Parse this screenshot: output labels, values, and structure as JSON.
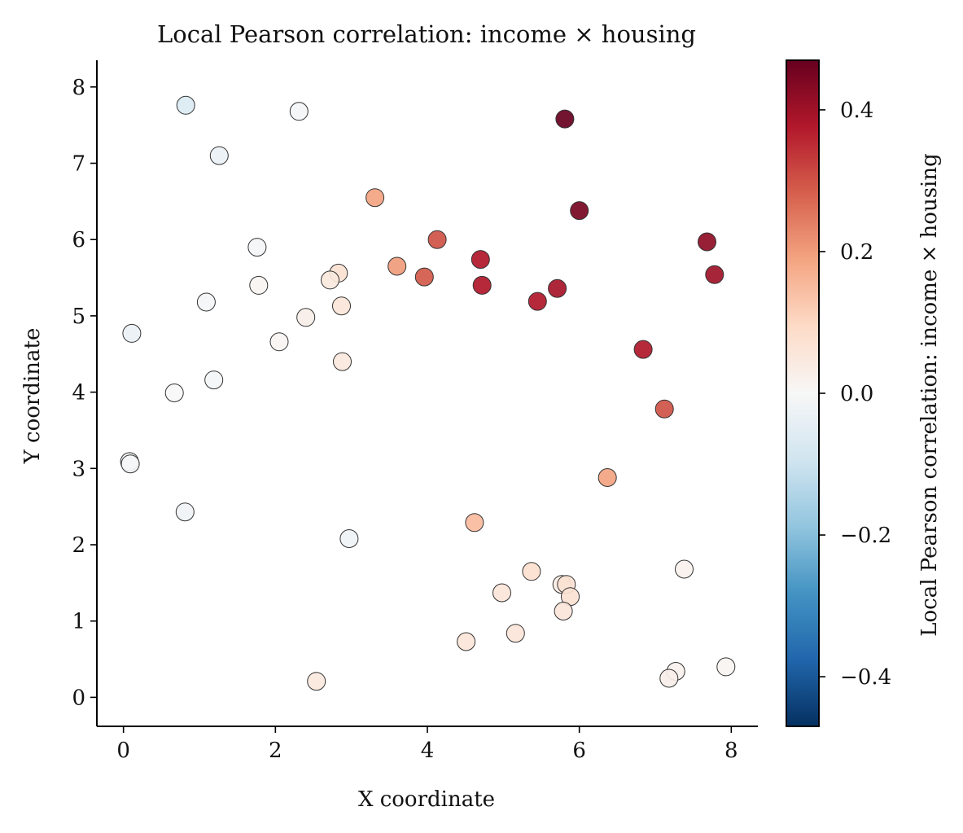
{
  "chart_data": {
    "type": "scatter",
    "title": "Local Pearson correlation: income × housing",
    "xlabel": "X coordinate",
    "ylabel": "Y coordinate",
    "xlim": [
      -0.35,
      8.35
    ],
    "ylim": [
      -0.38,
      8.35
    ],
    "xticks": [
      0,
      2,
      4,
      6,
      8
    ],
    "yticks": [
      0,
      1,
      2,
      3,
      4,
      5,
      6,
      7,
      8
    ],
    "grid": false,
    "colorbar": {
      "label": "Local Pearson correlation: income × housing",
      "range": [
        -0.47,
        0.47
      ],
      "ticks": [
        -0.4,
        -0.2,
        0.0,
        0.2,
        0.4
      ],
      "tick_labels": [
        "−0.4",
        "−0.2",
        "0.0",
        "0.2",
        "0.4"
      ],
      "colormap": "RdBu_r"
    },
    "points": [
      {
        "x": 0.82,
        "y": 7.76,
        "v": -0.07
      },
      {
        "x": 2.31,
        "y": 7.68,
        "v": -0.01
      },
      {
        "x": 1.26,
        "y": 7.1,
        "v": -0.03
      },
      {
        "x": 5.81,
        "y": 7.58,
        "v": 0.47
      },
      {
        "x": 6.0,
        "y": 6.38,
        "v": 0.45
      },
      {
        "x": 3.31,
        "y": 6.55,
        "v": 0.19
      },
      {
        "x": 4.13,
        "y": 6.0,
        "v": 0.3
      },
      {
        "x": 7.68,
        "y": 5.97,
        "v": 0.42
      },
      {
        "x": 7.78,
        "y": 5.54,
        "v": 0.4
      },
      {
        "x": 1.76,
        "y": 5.9,
        "v": -0.01
      },
      {
        "x": 4.7,
        "y": 5.74,
        "v": 0.38
      },
      {
        "x": 3.6,
        "y": 5.65,
        "v": 0.2
      },
      {
        "x": 3.96,
        "y": 5.51,
        "v": 0.29
      },
      {
        "x": 2.83,
        "y": 5.56,
        "v": 0.07
      },
      {
        "x": 2.72,
        "y": 5.47,
        "v": 0.05
      },
      {
        "x": 1.78,
        "y": 5.4,
        "v": 0.01
      },
      {
        "x": 4.72,
        "y": 5.4,
        "v": 0.38
      },
      {
        "x": 5.71,
        "y": 5.36,
        "v": 0.39
      },
      {
        "x": 5.45,
        "y": 5.19,
        "v": 0.38
      },
      {
        "x": 1.09,
        "y": 5.18,
        "v": -0.01
      },
      {
        "x": 2.87,
        "y": 5.13,
        "v": 0.06
      },
      {
        "x": 2.4,
        "y": 4.98,
        "v": 0.03
      },
      {
        "x": 0.11,
        "y": 4.77,
        "v": -0.03
      },
      {
        "x": 2.05,
        "y": 4.66,
        "v": 0.01
      },
      {
        "x": 6.84,
        "y": 4.56,
        "v": 0.38
      },
      {
        "x": 2.88,
        "y": 4.4,
        "v": 0.05
      },
      {
        "x": 1.19,
        "y": 4.16,
        "v": -0.01
      },
      {
        "x": 0.67,
        "y": 3.99,
        "v": 0.0
      },
      {
        "x": 7.12,
        "y": 3.78,
        "v": 0.3
      },
      {
        "x": 0.08,
        "y": 3.09,
        "v": -0.01
      },
      {
        "x": 0.09,
        "y": 3.06,
        "v": -0.01
      },
      {
        "x": 6.37,
        "y": 2.88,
        "v": 0.19
      },
      {
        "x": 0.81,
        "y": 2.43,
        "v": -0.02
      },
      {
        "x": 4.62,
        "y": 2.29,
        "v": 0.15
      },
      {
        "x": 2.97,
        "y": 2.08,
        "v": -0.02
      },
      {
        "x": 7.38,
        "y": 1.68,
        "v": 0.02
      },
      {
        "x": 5.37,
        "y": 1.65,
        "v": 0.08
      },
      {
        "x": 4.98,
        "y": 1.37,
        "v": 0.06
      },
      {
        "x": 5.77,
        "y": 1.48,
        "v": 0.04
      },
      {
        "x": 5.83,
        "y": 1.48,
        "v": 0.07
      },
      {
        "x": 5.88,
        "y": 1.32,
        "v": 0.07
      },
      {
        "x": 5.79,
        "y": 1.13,
        "v": 0.06
      },
      {
        "x": 5.16,
        "y": 0.84,
        "v": 0.06
      },
      {
        "x": 4.51,
        "y": 0.73,
        "v": 0.06
      },
      {
        "x": 7.93,
        "y": 0.4,
        "v": 0.01
      },
      {
        "x": 7.27,
        "y": 0.34,
        "v": 0.02
      },
      {
        "x": 7.18,
        "y": 0.25,
        "v": 0.03
      },
      {
        "x": 2.54,
        "y": 0.21,
        "v": 0.05
      }
    ]
  }
}
